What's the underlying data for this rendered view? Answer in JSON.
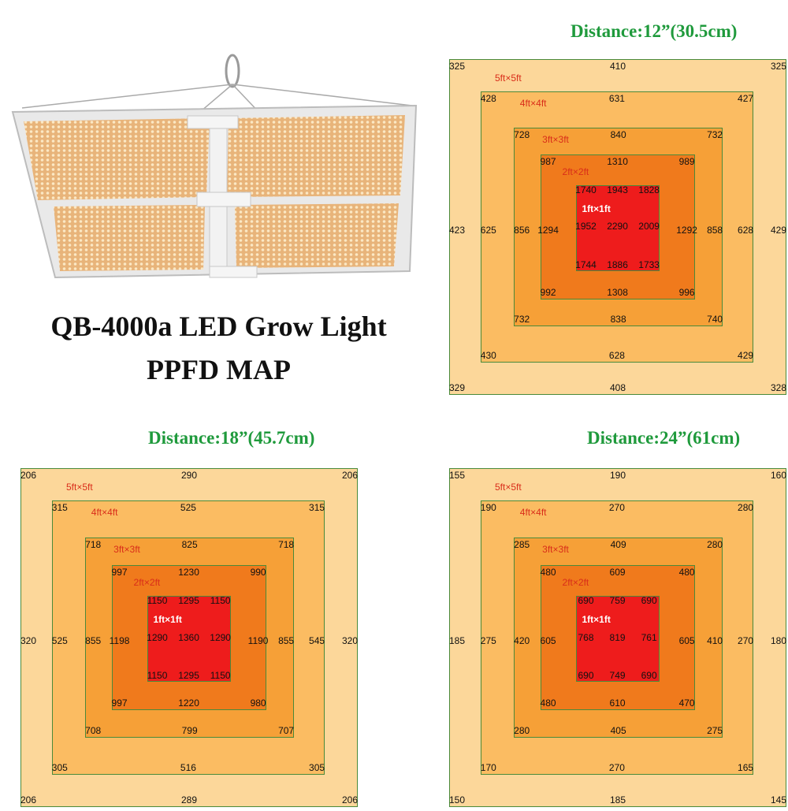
{
  "product": {
    "title_line1": "QB-4000a LED Grow Light",
    "title_line2": "PPFD MAP"
  },
  "colors": {
    "distance_title": "#1f9a3c",
    "zone_label": "#d92d1a",
    "zone_1ft_label": "#ffffff",
    "zone_5ft": "#fcd79a",
    "zone_4ft": "#fbbc62",
    "zone_3ft": "#f6a037",
    "zone_2ft": "#f07a1c",
    "zone_1ft": "#ee1c1c",
    "border": "#4a8a3a"
  },
  "zone_labels": [
    "5ft×5ft",
    "4ft×4ft",
    "3ft×3ft",
    "2ft×2ft",
    "1ft×1ft"
  ],
  "maps": [
    {
      "title": "Distance:12”(30.5cm)",
      "r5": {
        "tl": "325",
        "tm": "410",
        "tr": "325",
        "ml": "423",
        "mr": "429",
        "bl": "329",
        "bm": "408",
        "br": "328"
      },
      "r4": {
        "tl": "428",
        "tm": "631",
        "tr": "427",
        "ml": "625",
        "mr": "628",
        "bl": "430",
        "bm": "628",
        "br": "429"
      },
      "r3": {
        "tl": "728",
        "tm": "840",
        "tr": "732",
        "ml": "856",
        "mr": "858",
        "bl": "732",
        "bm": "838",
        "br": "740"
      },
      "r2": {
        "tl": "987",
        "tm": "1310",
        "tr": "989",
        "ml": "1294",
        "mr": "1292",
        "bl": "992",
        "bm": "1308",
        "br": "996"
      },
      "r1": {
        "tl": "1740",
        "tm": "1943",
        "tr": "1828",
        "ml": "1952",
        "mm": "2290",
        "mr": "2009",
        "bl": "1744",
        "bm": "1886",
        "br": "1733"
      }
    },
    {
      "title": "Distance:18”(45.7cm)",
      "r5": {
        "tl": "206",
        "tm": "290",
        "tr": "206",
        "ml": "320",
        "mr": "320",
        "bl": "206",
        "bm": "289",
        "br": "206"
      },
      "r4": {
        "tl": "315",
        "tm": "525",
        "tr": "315",
        "ml": "525",
        "mr": "545",
        "bl": "305",
        "bm": "516",
        "br": "305"
      },
      "r3": {
        "tl": "718",
        "tm": "825",
        "tr": "718",
        "ml": "855",
        "mr": "855",
        "bl": "708",
        "bm": "799",
        "br": "707"
      },
      "r2": {
        "tl": "997",
        "tm": "1230",
        "tr": "990",
        "ml": "1198",
        "mr": "1190",
        "bl": "997",
        "bm": "1220",
        "br": "980"
      },
      "r1": {
        "tl": "1150",
        "tm": "1295",
        "tr": "1150",
        "ml": "1290",
        "mm": "1360",
        "mr": "1290",
        "bl": "1150",
        "bm": "1295",
        "br": "1150"
      }
    },
    {
      "title": "Distance:24”(61cm)",
      "r5": {
        "tl": "155",
        "tm": "190",
        "tr": "160",
        "ml": "185",
        "mr": "180",
        "bl": "150",
        "bm": "185",
        "br": "145"
      },
      "r4": {
        "tl": "190",
        "tm": "270",
        "tr": "280",
        "ml": "275",
        "mr": "270",
        "bl": "170",
        "bm": "270",
        "br": "165"
      },
      "r3": {
        "tl": "285",
        "tm": "409",
        "tr": "280",
        "ml": "420",
        "mr": "410",
        "bl": "280",
        "bm": "405",
        "br": "275"
      },
      "r2": {
        "tl": "480",
        "tm": "609",
        "tr": "480",
        "ml": "605",
        "mr": "605",
        "bl": "480",
        "bm": "610",
        "br": "470"
      },
      "r1": {
        "tl": "690",
        "tm": "759",
        "tr": "690",
        "ml": "768",
        "mm": "819",
        "mr": "761",
        "bl": "690",
        "bm": "749",
        "br": "690"
      }
    }
  ]
}
